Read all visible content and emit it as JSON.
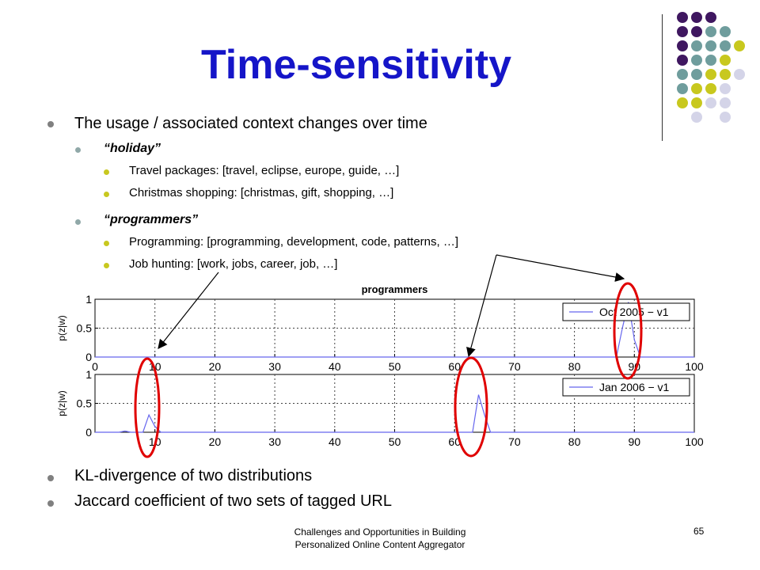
{
  "slide": {
    "title": "Time-sensitivity",
    "bullets": {
      "b1": "The usage / associated context changes over time",
      "b1_1": "“holiday”",
      "b1_1_1": "Travel packages: [travel, eclipse, europe, guide, …]",
      "b1_1_2": "Christmas shopping: [christmas, gift, shopping, …]",
      "b1_2": "“programmers”",
      "b1_2_1": "Programming: [programming, development, code, patterns, …]",
      "b1_2_2": "Job hunting: [work, jobs, career, job, …]",
      "b2": "KL-divergence of two distributions",
      "b3": "Jaccard coefficient of two sets of tagged URL"
    },
    "footer_line1": "Challenges and Opportunities in Building",
    "footer_line2": "Personalized Online Content Aggregator",
    "page_number": "65"
  },
  "colors": {
    "title": "#1515c8",
    "dot_purple": "#3f1760",
    "dot_teal": "#6f9d9d",
    "dot_yellow": "#c8c81e",
    "dot_lavender": "#d4d4e8",
    "series_line": "#6666ee",
    "highlight_ellipse": "#e00000"
  },
  "chart_data": [
    {
      "type": "line",
      "title": "programmers",
      "xlabel": "",
      "ylabel": "p(z|w)",
      "xlim": [
        0,
        100
      ],
      "ylim": [
        0,
        1
      ],
      "xticks": [
        0,
        10,
        20,
        30,
        40,
        50,
        60,
        70,
        80,
        90,
        100
      ],
      "xtick_labels": [
        "0",
        "10",
        "20",
        "30",
        "40",
        "50",
        "60",
        "70",
        "80",
        "90",
        "100"
      ],
      "yticks": [
        0,
        0.5,
        1
      ],
      "ytick_labels": [
        "0",
        "0.5",
        "1"
      ],
      "grid": true,
      "legend": "top-right",
      "series": [
        {
          "name": "Oct 2005 − v1",
          "x": [
            0,
            87,
            88,
            89,
            90,
            91,
            100
          ],
          "y": [
            0,
            0,
            0.5,
            0.95,
            0.3,
            0,
            0
          ]
        }
      ]
    },
    {
      "type": "line",
      "title": "",
      "xlabel": "",
      "ylabel": "p(z|w)",
      "xlim": [
        0,
        100
      ],
      "ylim": [
        0,
        1
      ],
      "xticks": [
        0,
        10,
        20,
        30,
        40,
        50,
        60,
        70,
        80,
        90,
        100
      ],
      "xtick_labels": [
        "",
        "10",
        "20",
        "30",
        "40",
        "50",
        "60",
        "70",
        "80",
        "90",
        "100"
      ],
      "yticks": [
        0,
        0.5,
        1
      ],
      "ytick_labels": [
        "0",
        "0.5",
        "1"
      ],
      "grid": true,
      "legend": "top-right",
      "series": [
        {
          "name": "Jan 2006 − v1",
          "x": [
            0,
            4,
            5,
            6,
            8,
            9,
            10,
            11,
            62,
            63,
            64,
            65,
            66,
            100
          ],
          "y": [
            0,
            0,
            0.02,
            0,
            0,
            0.3,
            0.1,
            0,
            0,
            0,
            0.65,
            0.3,
            0,
            0
          ]
        }
      ]
    }
  ]
}
